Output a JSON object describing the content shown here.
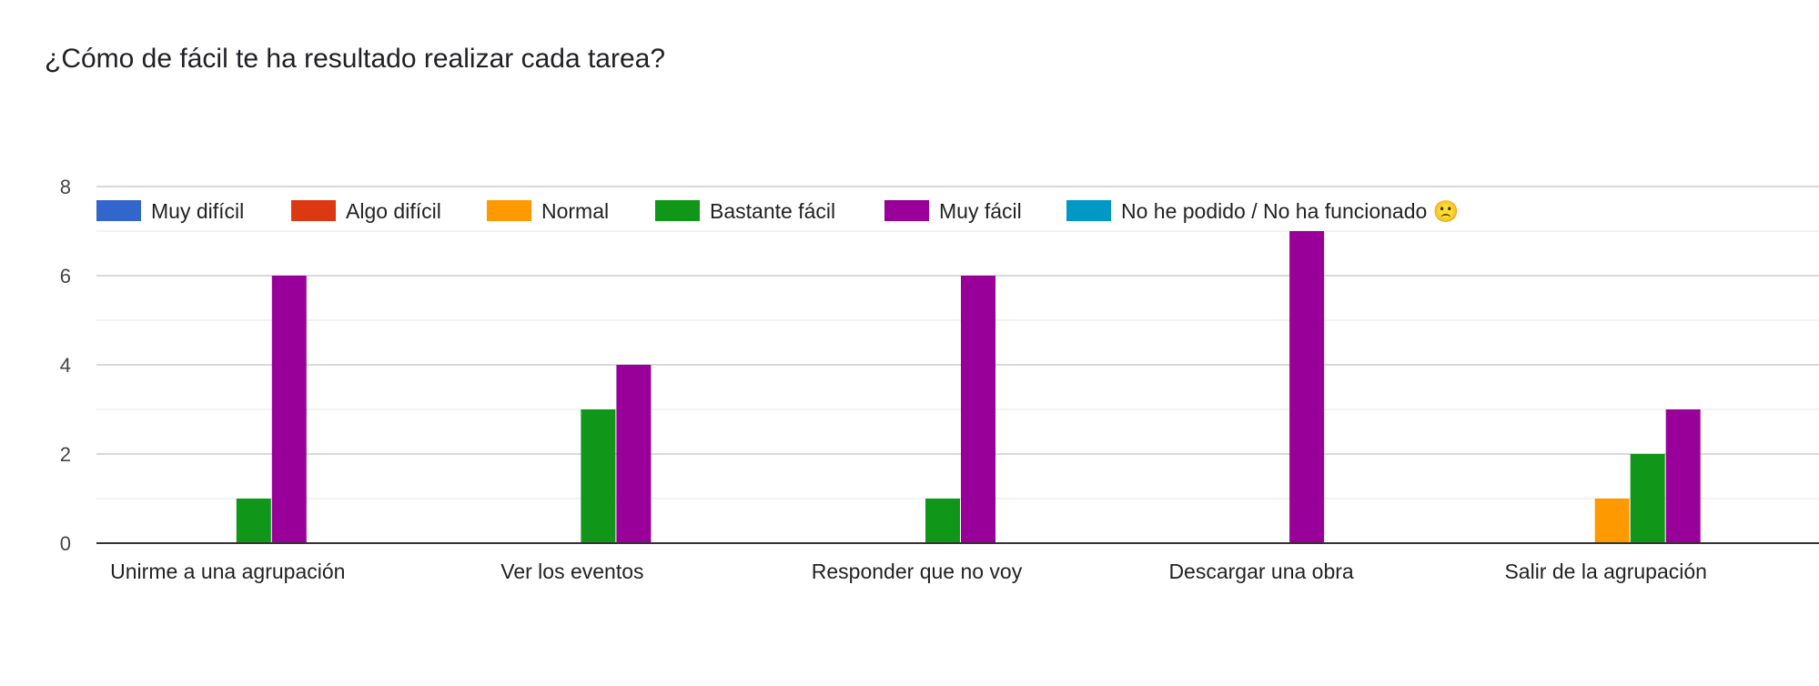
{
  "title": "¿Cómo de fácil te ha resultado realizar cada tarea?",
  "chart_data": {
    "type": "bar",
    "title": "¿Cómo de fácil te ha resultado realizar cada tarea?",
    "categories": [
      "Unirme a una agrupación",
      "Ver los eventos",
      "Responder que no voy",
      "Descargar una obra",
      "Salir de la agrupación"
    ],
    "series": [
      {
        "name": "Muy difícil",
        "color": "#3366cc",
        "values": [
          0,
          0,
          0,
          0,
          0
        ]
      },
      {
        "name": "Algo difícil",
        "color": "#dc3912",
        "values": [
          0,
          0,
          0,
          0,
          0
        ]
      },
      {
        "name": "Normal",
        "color": "#ff9900",
        "values": [
          0,
          0,
          0,
          0,
          1
        ]
      },
      {
        "name": "Bastante fácil",
        "color": "#109618",
        "values": [
          1,
          3,
          1,
          0,
          2
        ]
      },
      {
        "name": "Muy fácil",
        "color": "#990099",
        "values": [
          6,
          4,
          6,
          7,
          3
        ]
      },
      {
        "name": "No he podido / No ha funcionado 🙁",
        "color": "#0099c6",
        "values": [
          0,
          0,
          0,
          0,
          0
        ]
      }
    ],
    "yticks": [
      0,
      2,
      4,
      6,
      8
    ],
    "ylim": [
      0,
      8
    ],
    "grid": true,
    "legend_position": "top"
  }
}
